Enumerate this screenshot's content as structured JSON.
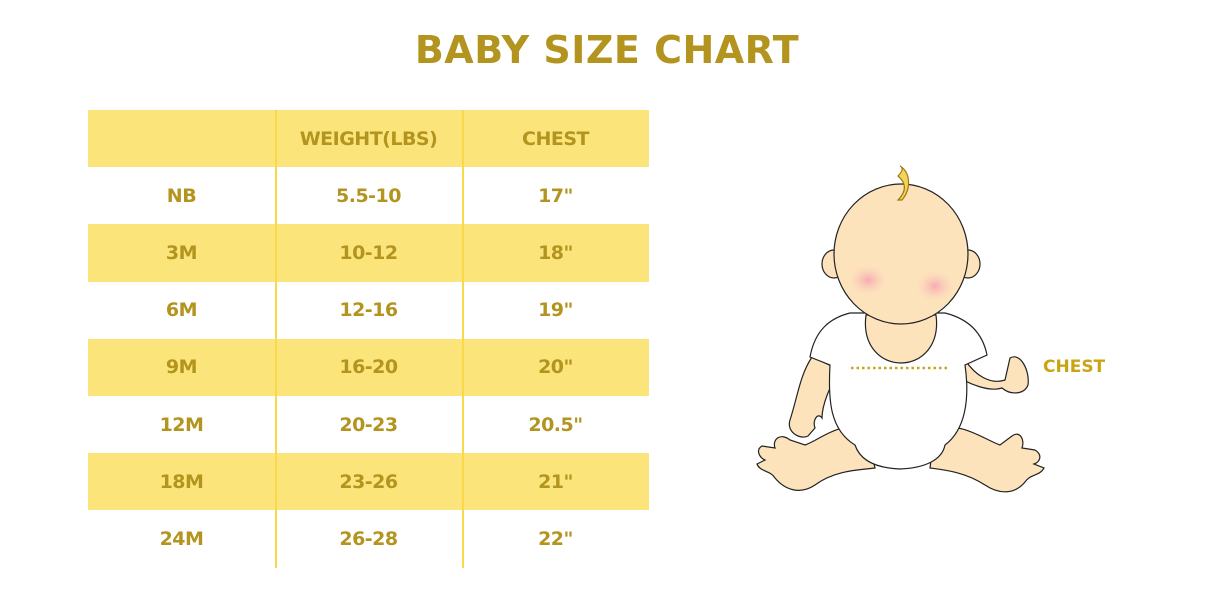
{
  "title": "BABY SIZE CHART",
  "table": {
    "headers": [
      "",
      "WEIGHT(LBS)",
      "CHEST"
    ],
    "rows": [
      [
        "NB",
        "5.5-10",
        "17\""
      ],
      [
        "3M",
        "10-12",
        "18\""
      ],
      [
        "6M",
        "12-16",
        "19\""
      ],
      [
        "9M",
        "16-20",
        "20\""
      ],
      [
        "12M",
        "20-23",
        "20.5\""
      ],
      [
        "18M",
        "23-26",
        "21\""
      ],
      [
        "24M",
        "26-28",
        "22\""
      ]
    ]
  },
  "illustration": {
    "chest_label": "CHEST"
  },
  "colors": {
    "text": "#b3941f",
    "row_shade": "#fbe57a",
    "skin": "#fde3bc",
    "chest_label": "#c9a414"
  }
}
